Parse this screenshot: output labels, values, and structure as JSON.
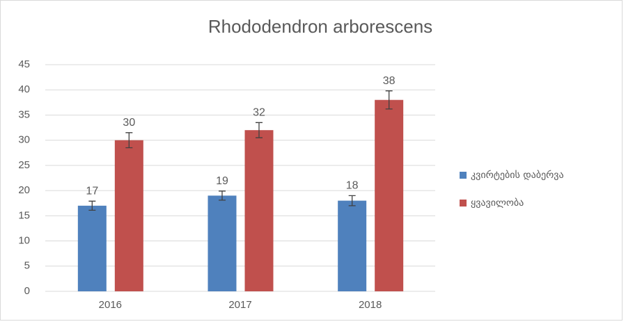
{
  "chart_data": {
    "type": "bar",
    "title": "Rhododendron arborescens",
    "categories": [
      "2016",
      "2017",
      "2018"
    ],
    "series": [
      {
        "name": "კვირტების დაბერვა",
        "color": "#4f81bd",
        "values": [
          17,
          19,
          18
        ],
        "errors": [
          0.9,
          0.9,
          1.0
        ]
      },
      {
        "name": "ყვავილობა",
        "color": "#c0504d",
        "values": [
          30,
          32,
          38
        ],
        "errors": [
          1.5,
          1.5,
          1.8
        ]
      }
    ],
    "ylim": [
      0,
      45
    ],
    "yticks": [
      0,
      5,
      10,
      15,
      20,
      25,
      30,
      35,
      40,
      45
    ],
    "grid": true,
    "legend": "right"
  }
}
